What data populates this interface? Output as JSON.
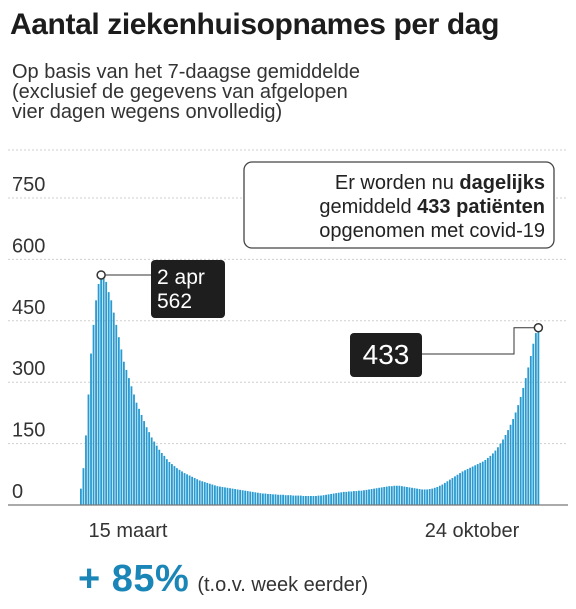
{
  "title": "Aantal ziekenhuisopnames per dag",
  "subtitle": "Op basis van het 7-daagse gemiddelde\n(exclusief de gegevens van afgelopen\nvier dagen wegens onvolledig)",
  "colors": {
    "bars": "#2a9bd0",
    "label_bg": "#1e1e1e",
    "text": "#333333"
  },
  "chart_data": {
    "type": "bar",
    "ylim": [
      0,
      780
    ],
    "yticks": [
      "0",
      "150",
      "300",
      "450",
      "600",
      "750"
    ],
    "ytick_values": [
      0,
      150,
      300,
      450,
      600,
      750
    ],
    "xtick_labels": [
      "15 maart",
      "24 oktober"
    ],
    "peak": {
      "date": "2 apr",
      "value": "562"
    },
    "latest": {
      "value": "433"
    },
    "info_box": [
      [
        {
          "t": "Er worden nu ",
          "b": false
        },
        {
          "t": "dagelijks",
          "b": true
        }
      ],
      [
        {
          "t": "gemiddeld ",
          "b": false
        },
        {
          "t": "433 patiënten",
          "b": true
        }
      ],
      [
        {
          "t": "opgenomen met covid-19",
          "b": false
        }
      ]
    ],
    "values": [
      40,
      90,
      170,
      270,
      370,
      440,
      500,
      540,
      562,
      558,
      545,
      520,
      500,
      470,
      440,
      410,
      380,
      350,
      330,
      310,
      290,
      270,
      250,
      235,
      220,
      205,
      190,
      178,
      165,
      155,
      145,
      135,
      127,
      120,
      112,
      105,
      100,
      95,
      90,
      86,
      82,
      78,
      75,
      72,
      69,
      66,
      63,
      60,
      58,
      56,
      54,
      52,
      50,
      48,
      46,
      45,
      44,
      43,
      42,
      41,
      40,
      39,
      38,
      37,
      36,
      35,
      34,
      33,
      32,
      31,
      30,
      29,
      28,
      28,
      27,
      27,
      26,
      26,
      25,
      25,
      25,
      24,
      24,
      24,
      23,
      23,
      23,
      23,
      22,
      22,
      22,
      22,
      22,
      22,
      23,
      23,
      24,
      25,
      26,
      27,
      28,
      29,
      30,
      31,
      32,
      32,
      33,
      33,
      34,
      34,
      35,
      35,
      36,
      37,
      38,
      39,
      40,
      41,
      42,
      43,
      44,
      45,
      46,
      46,
      47,
      47,
      47,
      46,
      45,
      44,
      43,
      42,
      41,
      40,
      39,
      38,
      38,
      38,
      39,
      40,
      42,
      44,
      47,
      50,
      54,
      58,
      62,
      66,
      70,
      74,
      78,
      82,
      85,
      88,
      91,
      94,
      97,
      100,
      103,
      106,
      110,
      115,
      120,
      126,
      133,
      141,
      150,
      160,
      171,
      183,
      196,
      210,
      226,
      244,
      264,
      286,
      310,
      336,
      364,
      394,
      420,
      433
    ]
  },
  "footer": {
    "change": "+ 85%",
    "note": "(t.o.v. week eerder)"
  }
}
